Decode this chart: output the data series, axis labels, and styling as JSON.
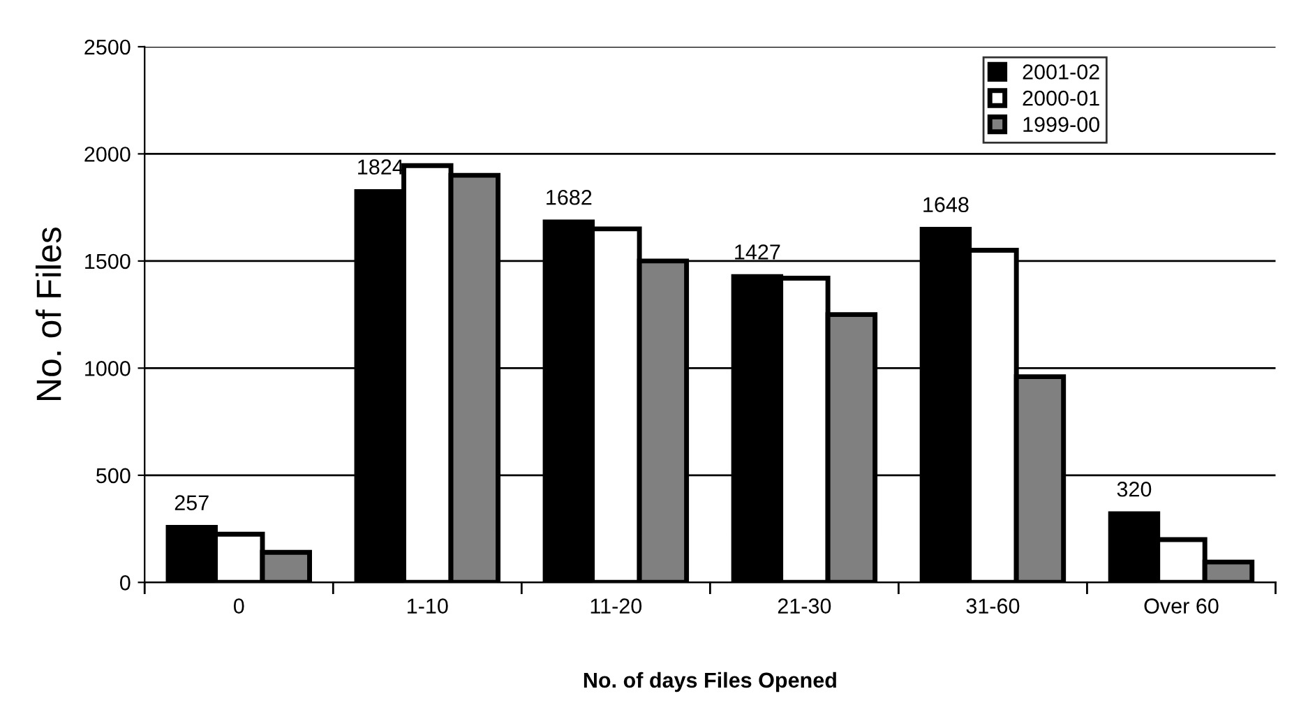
{
  "chart_data": {
    "type": "bar",
    "xlabel": "No. of days Files Opened",
    "ylabel": "No. of Files",
    "categories": [
      "0",
      "1-10",
      "11-20",
      "21-30",
      "31-60",
      "Over 60"
    ],
    "series": [
      {
        "name": "2001-02",
        "color": "#000000",
        "values": [
          257,
          1824,
          1682,
          1427,
          1648,
          320
        ],
        "value_labels": [
          "257",
          "1824",
          "1682",
          "1427",
          "1648",
          "320"
        ]
      },
      {
        "name": "2000-01",
        "color": "#ffffff",
        "values": [
          225,
          1945,
          1650,
          1420,
          1550,
          200
        ]
      },
      {
        "name": "1999-00",
        "color": "#808080",
        "values": [
          140,
          1900,
          1500,
          1250,
          960,
          95
        ]
      }
    ],
    "ylim": [
      0,
      2500
    ],
    "yticks": [
      0,
      500,
      1000,
      1500,
      2000,
      2500
    ],
    "grid": "y",
    "legend": "top right"
  }
}
